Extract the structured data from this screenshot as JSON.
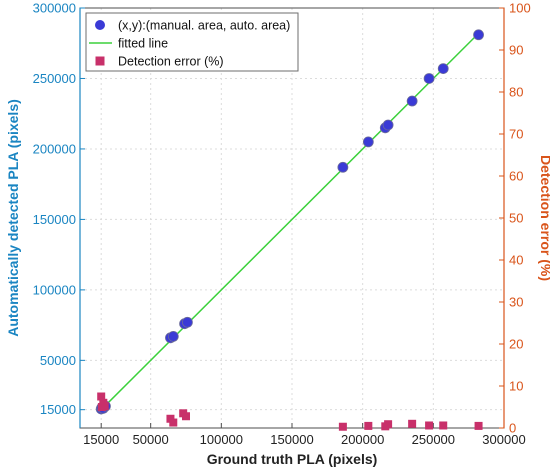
{
  "chart_data": {
    "type": "scatter",
    "xlabel": "Ground truth PLA (pixels)",
    "ylabel": "Automatically detected PLA (pixels)",
    "ylabel_right": "Detection error (%)",
    "xlim": [
      0,
      300000
    ],
    "ylim": [
      2000,
      300000
    ],
    "ylim_right": [
      0,
      100
    ],
    "x_ticks": [
      15000,
      50000,
      100000,
      150000,
      200000,
      250000,
      300000
    ],
    "y_ticks": [
      15000,
      50000,
      100000,
      150000,
      200000,
      250000,
      300000
    ],
    "y_ticks_right": [
      0,
      10,
      20,
      30,
      40,
      50,
      60,
      70,
      80,
      90,
      100
    ],
    "x_tick_labels": [
      "15000",
      "50000",
      "100000",
      "150000",
      "200000",
      "250000",
      "300000"
    ],
    "y_tick_labels": [
      "15000",
      "50000",
      "100000",
      "150000",
      "200000",
      "250000",
      "300000"
    ],
    "y_tick_labels_right": [
      "0",
      "10",
      "20",
      "30",
      "40",
      "50",
      "60",
      "70",
      "80",
      "90",
      "100"
    ],
    "grid": true,
    "legend_position": "top-left",
    "series": [
      {
        "name": "(x,y):(manual. area, auto. area)",
        "marker": "circle",
        "axis": "left",
        "color": "#3a3ad6",
        "x": [
          15000,
          15500,
          16500,
          18000,
          64000,
          66000,
          74000,
          76000,
          186000,
          204000,
          216000,
          218000,
          235000,
          247000,
          257000,
          282000
        ],
        "y": [
          15500,
          16500,
          16000,
          17500,
          66000,
          67000,
          76000,
          77000,
          187000,
          205000,
          215000,
          217000,
          234000,
          250000,
          257000,
          281000
        ]
      },
      {
        "name": "fitted line",
        "marker": "line",
        "axis": "left",
        "color": "#3bd13b",
        "x": [
          15000,
          282000
        ],
        "y": [
          15000,
          282000
        ]
      },
      {
        "name": "Detection error (%)",
        "marker": "square",
        "axis": "right",
        "color": "#c8306a",
        "x": [
          15000,
          15500,
          16500,
          17500,
          64000,
          66000,
          73000,
          75000,
          186000,
          204000,
          216000,
          218000,
          235000,
          247000,
          257000,
          282000
        ],
        "y": [
          7.5,
          5.0,
          6.0,
          5.2,
          2.2,
          1.3,
          3.5,
          2.8,
          0.3,
          0.5,
          0.4,
          0.9,
          1.0,
          0.6,
          0.6,
          0.5
        ]
      }
    ]
  }
}
